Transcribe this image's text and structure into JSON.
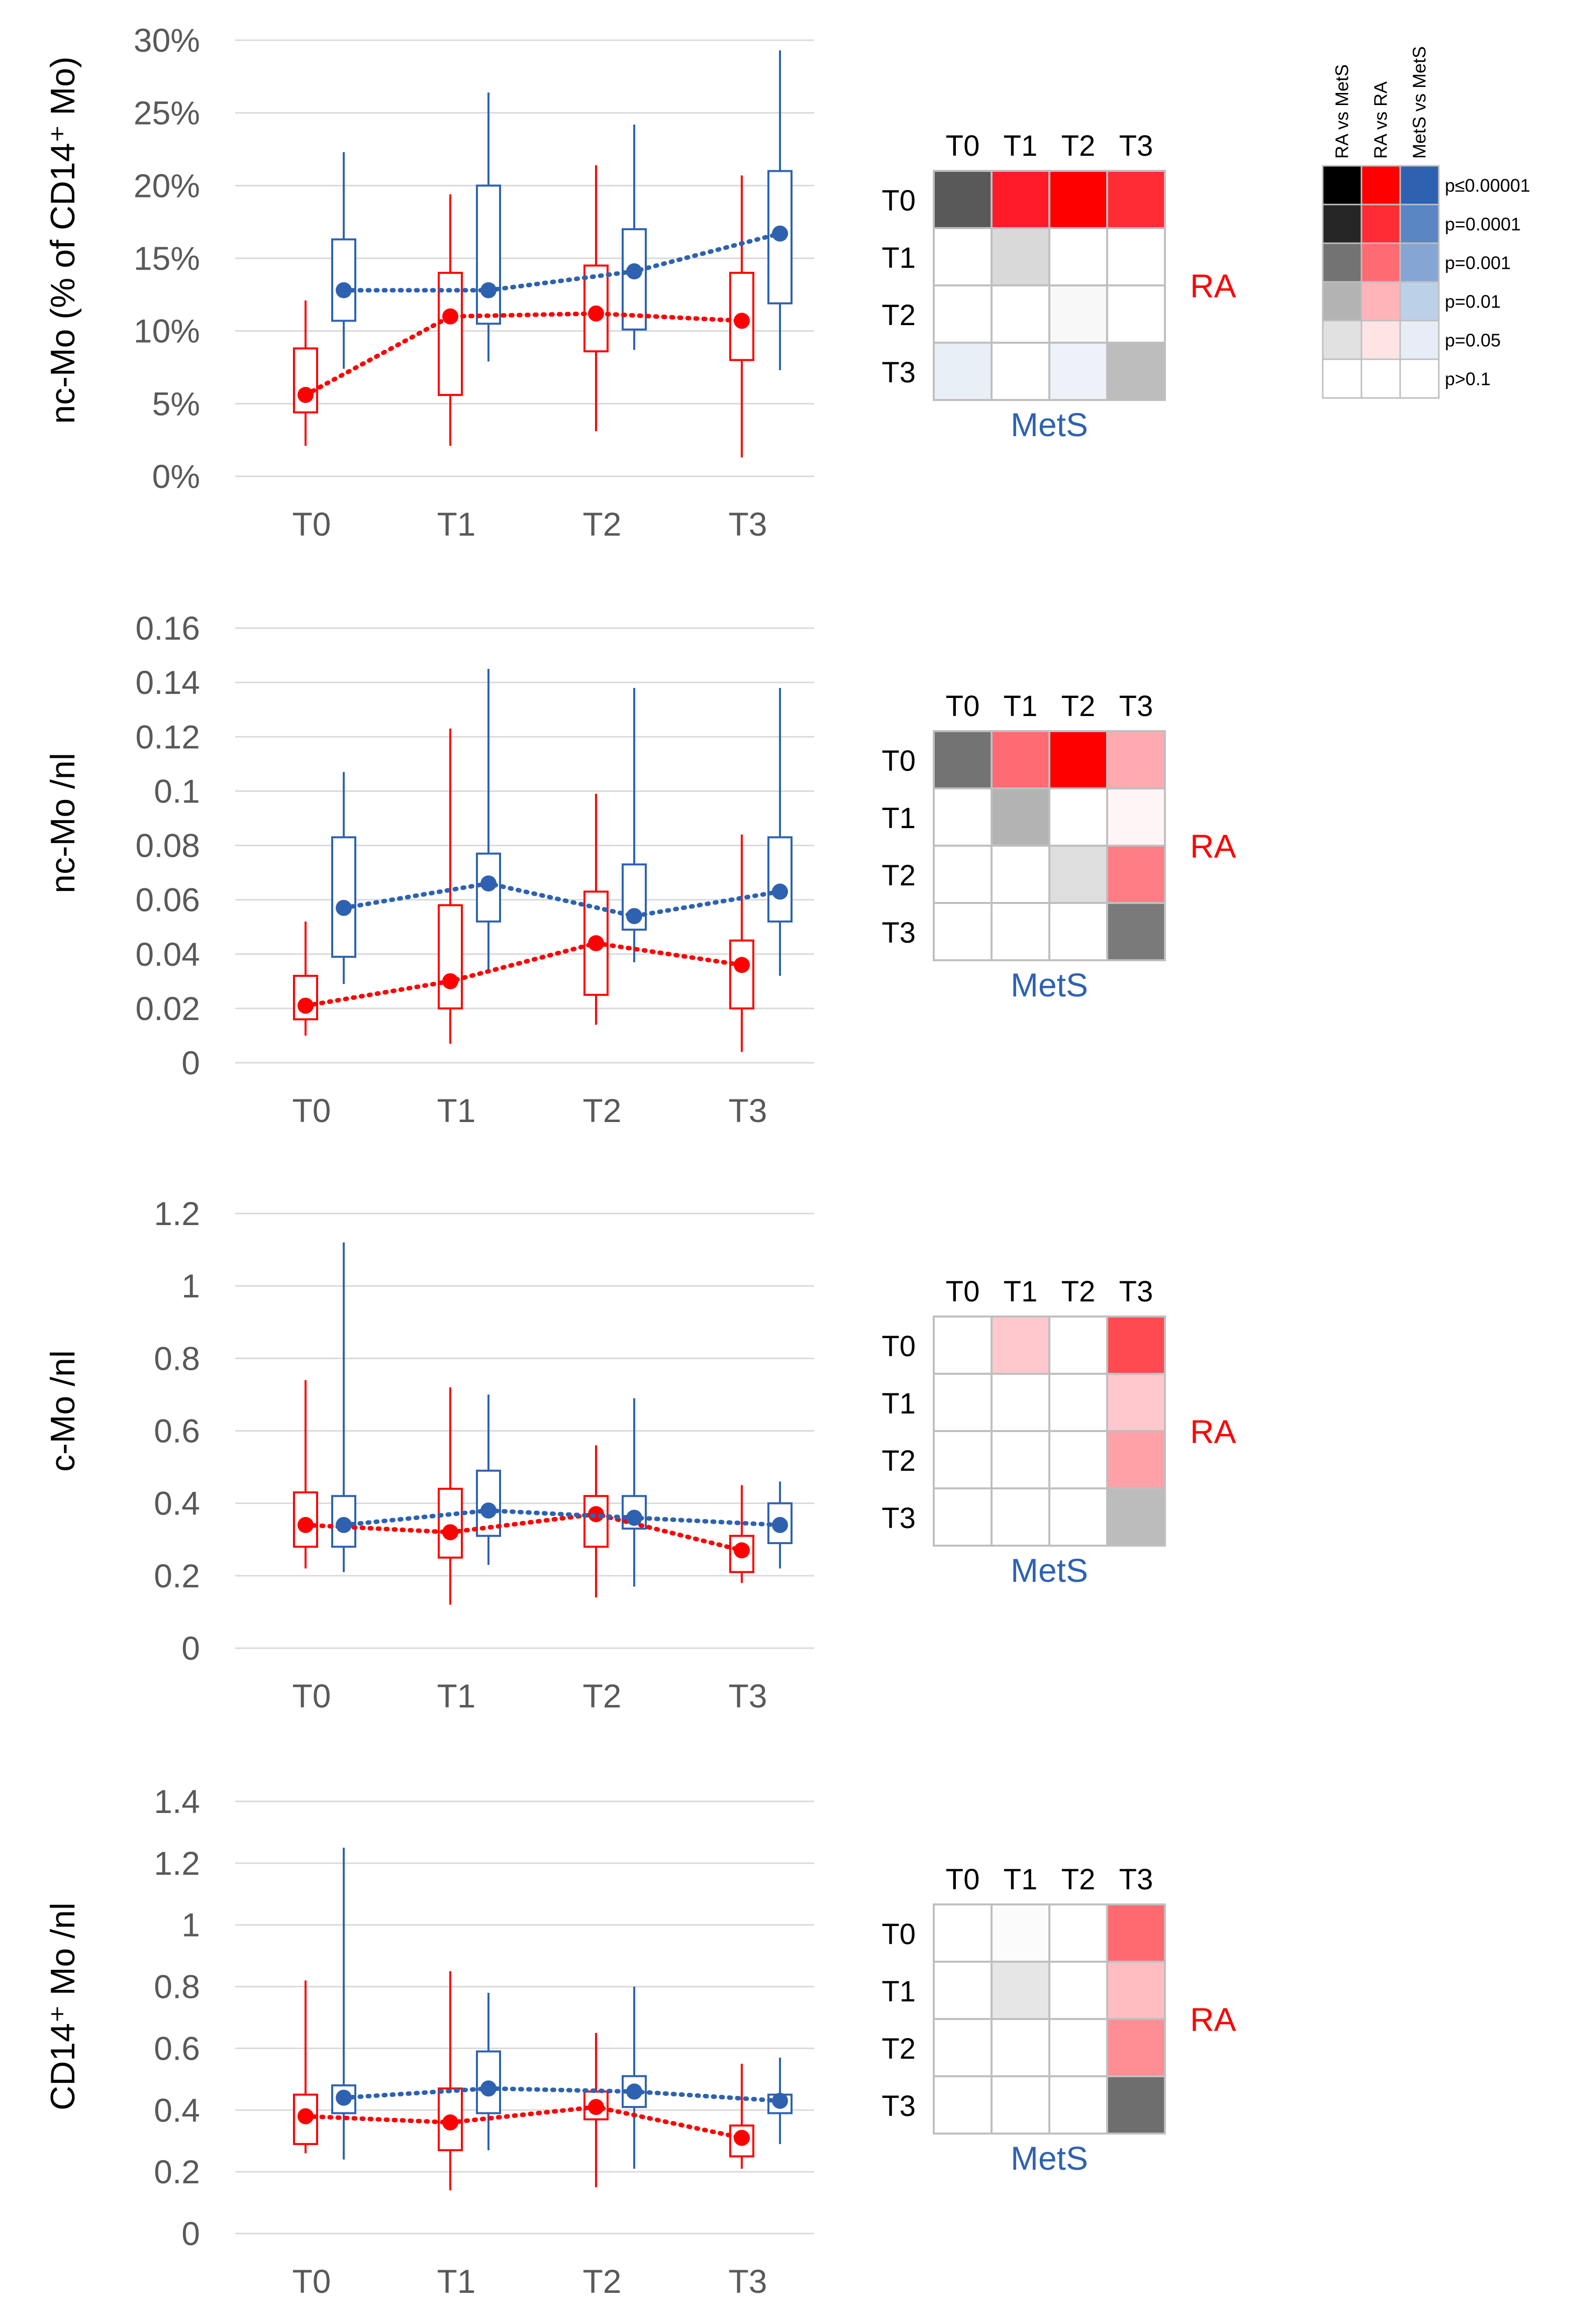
{
  "colors": {
    "ra": "#ff0000",
    "mets": "#2e62b0",
    "grid": "#d9d9d9",
    "tick": "#595959",
    "cell_border": "#bfbfbf"
  },
  "chart_data": [
    {
      "type": "box",
      "ylabel": "nc-Mo (% of CD14⁺ Mo)",
      "categories": [
        "T0",
        "T1",
        "T2",
        "T3"
      ],
      "ylim": [
        0,
        30
      ],
      "yticks": [
        0,
        5,
        10,
        15,
        20,
        25,
        30
      ],
      "tick_labels": [
        "0%",
        "5%",
        "10%",
        "15%",
        "20%",
        "25%",
        "30%"
      ],
      "series": [
        {
          "name": "RA",
          "color": "#ff0000",
          "median": [
            5.6,
            11.0,
            11.2,
            10.7
          ],
          "q1": [
            4.4,
            5.6,
            8.6,
            8.0
          ],
          "q3": [
            8.8,
            14.0,
            14.5,
            14.0
          ],
          "min": [
            2.1,
            2.1,
            3.1,
            1.3
          ],
          "max": [
            12.1,
            19.4,
            21.4,
            20.7
          ]
        },
        {
          "name": "MetS",
          "color": "#2e62b0",
          "median": [
            12.8,
            12.8,
            14.1,
            16.7
          ],
          "q1": [
            10.7,
            10.5,
            10.1,
            11.9
          ],
          "q3": [
            16.3,
            20.0,
            17.0,
            21.0
          ],
          "min": [
            7.4,
            7.9,
            8.7,
            7.3
          ],
          "max": [
            22.3,
            26.4,
            24.2,
            29.3
          ]
        }
      ],
      "heatmap": {
        "col_labels": [
          "T0",
          "T1",
          "T2",
          "T3"
        ],
        "row_labels": [
          "T0",
          "T1",
          "T2",
          "T3"
        ],
        "right_label": "RA",
        "bottom_label": "MetS",
        "cells": [
          [
            "#595959",
            "#ff1a2a",
            "#ff0000",
            "#ff2b35"
          ],
          [
            "#ffffff",
            "#d9d9d9",
            "#ffffff",
            "#ffffff"
          ],
          [
            "#ffffff",
            "#ffffff",
            "#f8f8f8",
            "#ffffff"
          ],
          [
            "#e9eff7",
            "#ffffff",
            "#eef2f8",
            "#bdbdbd"
          ]
        ]
      }
    },
    {
      "type": "box",
      "ylabel": "nc-Mo /nl",
      "categories": [
        "T0",
        "T1",
        "T2",
        "T3"
      ],
      "ylim": [
        0,
        0.16
      ],
      "yticks": [
        0,
        0.02,
        0.04,
        0.06,
        0.08,
        0.1,
        0.12,
        0.14,
        0.16
      ],
      "tick_labels": [
        "0",
        "0.02",
        "0.04",
        "0.06",
        "0.08",
        "0.1",
        "0.12",
        "0.14",
        "0.16"
      ],
      "series": [
        {
          "name": "RA",
          "color": "#ff0000",
          "median": [
            0.021,
            0.03,
            0.044,
            0.036
          ],
          "q1": [
            0.016,
            0.02,
            0.025,
            0.02
          ],
          "q3": [
            0.032,
            0.058,
            0.063,
            0.045
          ],
          "min": [
            0.01,
            0.007,
            0.014,
            0.004
          ],
          "max": [
            0.052,
            0.123,
            0.099,
            0.084
          ]
        },
        {
          "name": "MetS",
          "color": "#2e62b0",
          "median": [
            0.057,
            0.066,
            0.054,
            0.063
          ],
          "q1": [
            0.039,
            0.052,
            0.049,
            0.052
          ],
          "q3": [
            0.083,
            0.077,
            0.073,
            0.083
          ],
          "min": [
            0.029,
            0.034,
            0.037,
            0.032
          ],
          "max": [
            0.107,
            0.145,
            0.138,
            0.138
          ]
        }
      ],
      "heatmap": {
        "col_labels": [
          "T0",
          "T1",
          "T2",
          "T3"
        ],
        "row_labels": [
          "T0",
          "T1",
          "T2",
          "T3"
        ],
        "right_label": "RA",
        "bottom_label": "MetS",
        "cells": [
          [
            "#737373",
            "#ff6b72",
            "#ff0000",
            "#ffaab0"
          ],
          [
            "#ffffff",
            "#b3b3b3",
            "#ffffff",
            "#fff5f6"
          ],
          [
            "#ffffff",
            "#ffffff",
            "#dedede",
            "#ff7d84"
          ],
          [
            "#ffffff",
            "#ffffff",
            "#ffffff",
            "#7a7a7a"
          ]
        ]
      }
    },
    {
      "type": "box",
      "ylabel": "c-Mo /nl",
      "categories": [
        "T0",
        "T1",
        "T2",
        "T3"
      ],
      "ylim": [
        0,
        1.2
      ],
      "yticks": [
        0,
        0.2,
        0.4,
        0.6,
        0.8,
        1,
        1.2
      ],
      "tick_labels": [
        "0",
        "0.2",
        "0.4",
        "0.6",
        "0.8",
        "1",
        "1.2"
      ],
      "series": [
        {
          "name": "RA",
          "color": "#ff0000",
          "median": [
            0.34,
            0.32,
            0.37,
            0.27
          ],
          "q1": [
            0.28,
            0.25,
            0.28,
            0.21
          ],
          "q3": [
            0.43,
            0.44,
            0.42,
            0.31
          ],
          "min": [
            0.22,
            0.12,
            0.14,
            0.18
          ],
          "max": [
            0.74,
            0.72,
            0.56,
            0.45
          ]
        },
        {
          "name": "MetS",
          "color": "#2e62b0",
          "median": [
            0.34,
            0.38,
            0.36,
            0.34
          ],
          "q1": [
            0.28,
            0.31,
            0.33,
            0.29
          ],
          "q3": [
            0.42,
            0.49,
            0.42,
            0.4
          ],
          "min": [
            0.21,
            0.23,
            0.17,
            0.22
          ],
          "max": [
            1.12,
            0.7,
            0.69,
            0.46
          ]
        }
      ],
      "heatmap": {
        "col_labels": [
          "T0",
          "T1",
          "T2",
          "T3"
        ],
        "row_labels": [
          "T0",
          "T1",
          "T2",
          "T3"
        ],
        "right_label": "RA",
        "bottom_label": "MetS",
        "cells": [
          [
            "#ffffff",
            "#ffc8cc",
            "#ffffff",
            "#ff4a52"
          ],
          [
            "#ffffff",
            "#ffffff",
            "#ffffff",
            "#ffc8cc"
          ],
          [
            "#ffffff",
            "#ffffff",
            "#ffffff",
            "#ffa1a7"
          ],
          [
            "#ffffff",
            "#ffffff",
            "#ffffff",
            "#bcbcbc"
          ]
        ]
      }
    },
    {
      "type": "box",
      "ylabel": "CD14⁺ Mo /nl",
      "categories": [
        "T0",
        "T1",
        "T2",
        "T3"
      ],
      "ylim": [
        0,
        1.4
      ],
      "yticks": [
        0,
        0.2,
        0.4,
        0.6,
        0.8,
        1,
        1.2,
        1.4
      ],
      "tick_labels": [
        "0",
        "0.2",
        "0.4",
        "0.6",
        "0.8",
        "1",
        "1.2",
        "1.4"
      ],
      "series": [
        {
          "name": "RA",
          "color": "#ff0000",
          "median": [
            0.38,
            0.36,
            0.41,
            0.31
          ],
          "q1": [
            0.29,
            0.27,
            0.37,
            0.25
          ],
          "q3": [
            0.45,
            0.47,
            0.46,
            0.35
          ],
          "min": [
            0.26,
            0.14,
            0.15,
            0.21
          ],
          "max": [
            0.82,
            0.85,
            0.65,
            0.55
          ]
        },
        {
          "name": "MetS",
          "color": "#2e62b0",
          "median": [
            0.44,
            0.47,
            0.46,
            0.43
          ],
          "q1": [
            0.39,
            0.39,
            0.41,
            0.39
          ],
          "q3": [
            0.48,
            0.59,
            0.51,
            0.45
          ],
          "min": [
            0.24,
            0.27,
            0.21,
            0.29
          ],
          "max": [
            1.25,
            0.78,
            0.8,
            0.57
          ]
        }
      ],
      "heatmap": {
        "col_labels": [
          "T0",
          "T1",
          "T2",
          "T3"
        ],
        "row_labels": [
          "T0",
          "T1",
          "T2",
          "T3"
        ],
        "right_label": "RA",
        "bottom_label": "MetS",
        "cells": [
          [
            "#ffffff",
            "#fbfbfb",
            "#ffffff",
            "#ff6a71"
          ],
          [
            "#ffffff",
            "#e6e6e6",
            "#ffffff",
            "#ffbcc1"
          ],
          [
            "#ffffff",
            "#ffffff",
            "#ffffff",
            "#ff8d94"
          ],
          [
            "#ffffff",
            "#ffffff",
            "#ffffff",
            "#6e6e6e"
          ]
        ]
      }
    }
  ],
  "legend": {
    "column_labels": [
      "RA vs MetS",
      "RA vs RA",
      "MetS vs MetS"
    ],
    "rows": [
      {
        "label": "p≤0.00001",
        "colors": [
          "#000000",
          "#ff0000",
          "#2e62b0"
        ]
      },
      {
        "label": "p=0.0001",
        "colors": [
          "#262626",
          "#ff2b35",
          "#5a86c4"
        ]
      },
      {
        "label": "p=0.001",
        "colors": [
          "#737373",
          "#ff6b72",
          "#85a6d4"
        ]
      },
      {
        "label": "p=0.01",
        "colors": [
          "#b3b3b3",
          "#ffb4b9",
          "#bcd0e8"
        ]
      },
      {
        "label": "p=0.05",
        "colors": [
          "#e1e1e1",
          "#ffe4e6",
          "#e6edf6"
        ]
      },
      {
        "label": "p>0.1",
        "colors": [
          "#ffffff",
          "#ffffff",
          "#ffffff"
        ]
      }
    ]
  }
}
